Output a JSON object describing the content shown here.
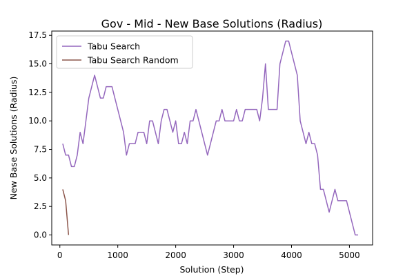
{
  "chart_data": {
    "type": "line",
    "title": "Gov - Mid - New Base Solutions (Radius)",
    "xlabel": "Solution (Step)",
    "ylabel": "New Base Solutions (Radius)",
    "xlim": [
      -140,
      5400
    ],
    "ylim": [
      -0.875,
      17.875
    ],
    "x_ticks": [
      0,
      1000,
      2000,
      3000,
      4000,
      5000
    ],
    "x_tick_labels": [
      "0",
      "1000",
      "2000",
      "3000",
      "4000",
      "5000"
    ],
    "y_ticks": [
      0,
      2.5,
      5,
      7.5,
      10,
      12.5,
      15,
      17.5
    ],
    "y_tick_labels": [
      "0.0",
      "2.5",
      "5.0",
      "7.5",
      "10.0",
      "12.5",
      "15.0",
      "17.5"
    ],
    "grid": false,
    "legend_position": "top-left",
    "series": [
      {
        "name": "Tabu Search",
        "color": "#9467bd",
        "x": [
          50,
          100,
          150,
          200,
          250,
          300,
          350,
          400,
          450,
          500,
          550,
          600,
          650,
          700,
          750,
          800,
          850,
          900,
          950,
          1000,
          1050,
          1100,
          1150,
          1200,
          1250,
          1300,
          1350,
          1400,
          1450,
          1500,
          1550,
          1600,
          1650,
          1700,
          1750,
          1800,
          1850,
          1900,
          1950,
          2000,
          2050,
          2100,
          2150,
          2200,
          2250,
          2300,
          2350,
          2400,
          2450,
          2500,
          2550,
          2600,
          2650,
          2700,
          2750,
          2800,
          2850,
          2900,
          2950,
          3000,
          3050,
          3100,
          3150,
          3200,
          3250,
          3300,
          3350,
          3400,
          3450,
          3500,
          3550,
          3600,
          3650,
          3700,
          3750,
          3800,
          3850,
          3900,
          3950,
          4000,
          4050,
          4100,
          4150,
          4200,
          4250,
          4300,
          4350,
          4400,
          4450,
          4500,
          4550,
          4600,
          4650,
          4700,
          4750,
          4800,
          4850,
          4900,
          4950,
          5000,
          5050,
          5100,
          5150
        ],
        "y": [
          8,
          7,
          7,
          6,
          6,
          7,
          9,
          8,
          10,
          12,
          13,
          14,
          13,
          12,
          12,
          13,
          13,
          13,
          12,
          11,
          10,
          9,
          7,
          8,
          8,
          8,
          9,
          9,
          9,
          8,
          10,
          10,
          9,
          8,
          10,
          11,
          11,
          10,
          9,
          10,
          8,
          8,
          9,
          8,
          10,
          10,
          11,
          10,
          9,
          8,
          7,
          8,
          9,
          10,
          10,
          11,
          10,
          10,
          10,
          10,
          11,
          10,
          10,
          11,
          11,
          11,
          11,
          11,
          10,
          12,
          15,
          11,
          11,
          11,
          11,
          15,
          16,
          17,
          17,
          16,
          15,
          14,
          10,
          9,
          8,
          9,
          8,
          8,
          7,
          4,
          4,
          3,
          2,
          3,
          4,
          3,
          3,
          3,
          3,
          2,
          1,
          0,
          0
        ]
      },
      {
        "name": "Tabu Search Random",
        "color": "#8c564b",
        "x": [
          50,
          100,
          150
        ],
        "y": [
          4,
          3,
          0
        ]
      }
    ]
  }
}
